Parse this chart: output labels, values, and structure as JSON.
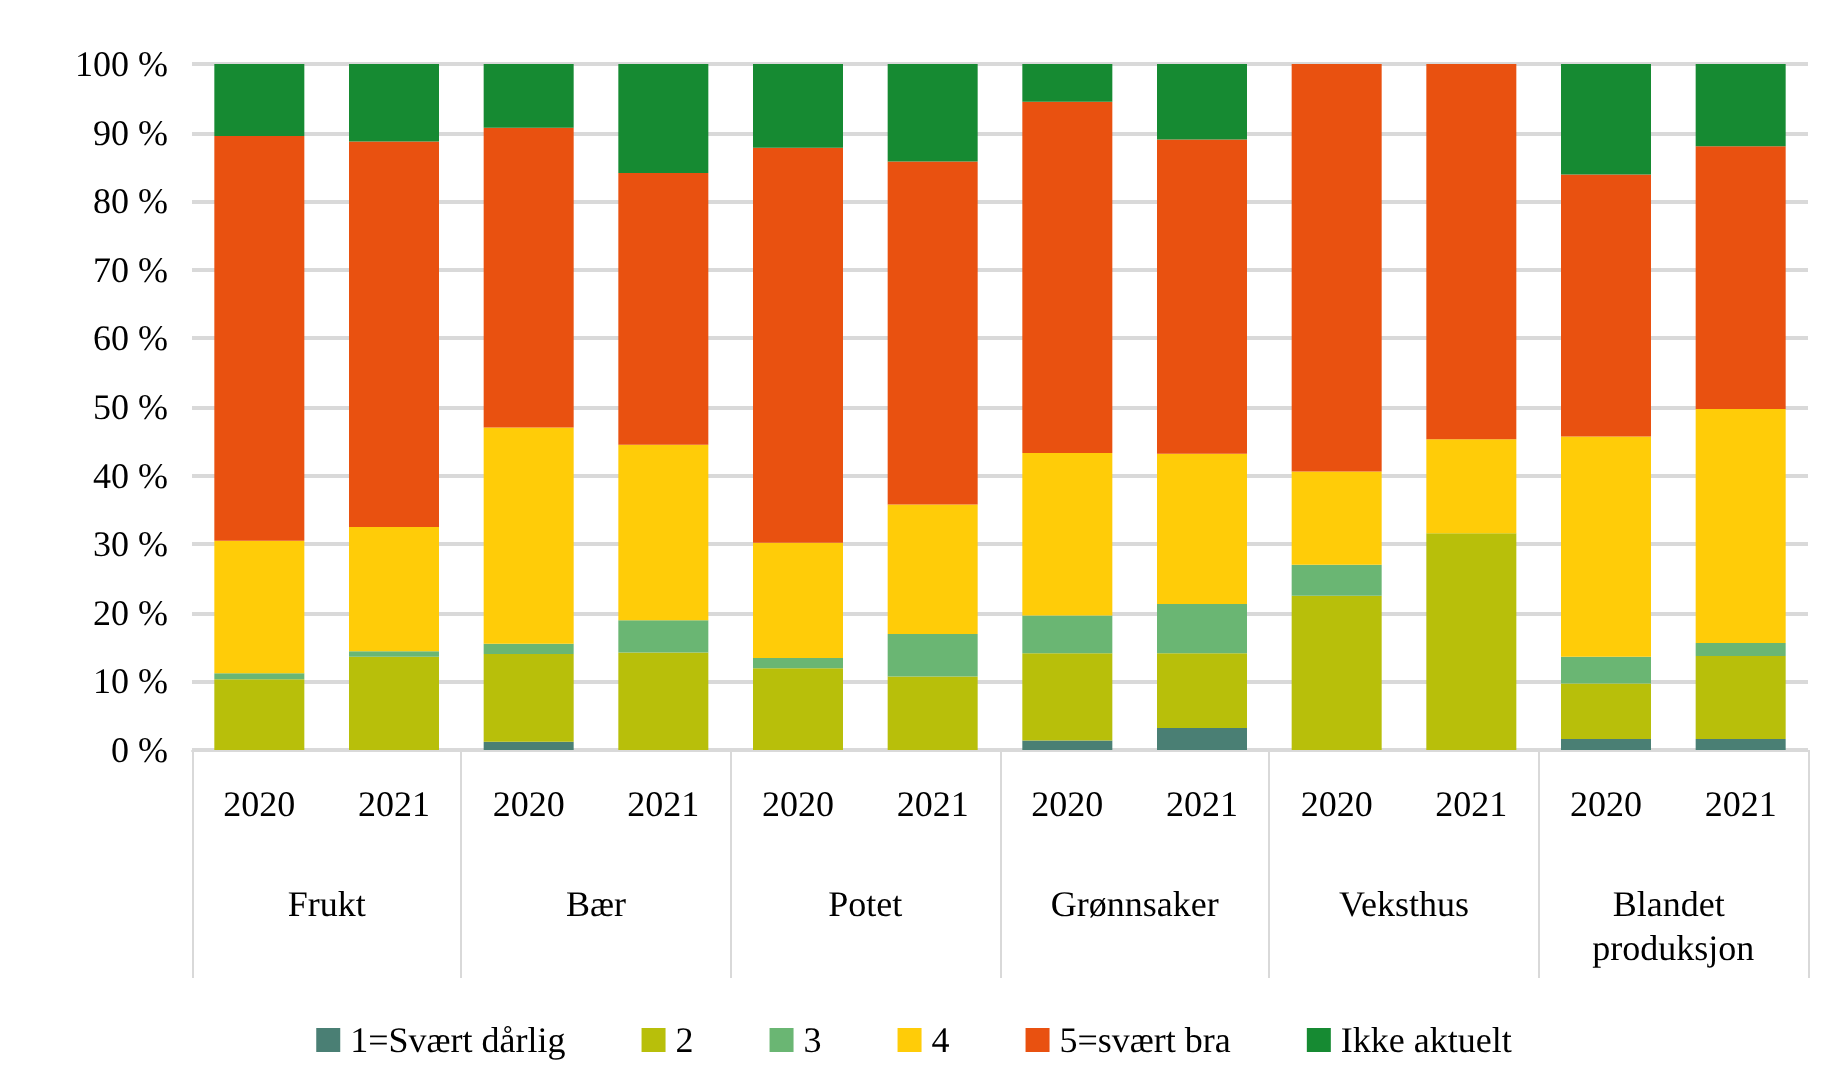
{
  "chart_data": {
    "type": "bar",
    "stacked": true,
    "grid": "y",
    "legend": "bottom",
    "categories": [
      "2020",
      "2021",
      "2020",
      "2021",
      "2020",
      "2021",
      "2020",
      "2021",
      "2020",
      "2021",
      "2020",
      "2021"
    ],
    "annotations": [
      "Frukt",
      "Bær",
      "Potet",
      "Grønnsaker",
      "Veksthus",
      "Blandet produksjon"
    ],
    "ylim": [
      0,
      100
    ],
    "yticks": [
      {
        "value": 0,
        "label": "0 %"
      },
      {
        "value": 10,
        "label": "10 %"
      },
      {
        "value": 20,
        "label": "20 %"
      },
      {
        "value": 30,
        "label": "30 %"
      },
      {
        "value": 40,
        "label": "40 %"
      },
      {
        "value": 50,
        "label": "50 %"
      },
      {
        "value": 60,
        "label": "60 %"
      },
      {
        "value": 70,
        "label": "70 %"
      },
      {
        "value": 80,
        "label": "80 %"
      },
      {
        "value": 90,
        "label": "90 %"
      },
      {
        "value": 100,
        "label": "100 %"
      }
    ],
    "series": [
      {
        "name": "1=Svært dårlig",
        "color": "#4a7f74",
        "values": [
          0,
          0,
          1.2,
          0,
          0,
          0,
          1.4,
          3.2,
          0,
          0,
          1.6,
          1.6
        ]
      },
      {
        "name": "2",
        "color": "#b8bf0a",
        "values": [
          10.3,
          13.6,
          12.8,
          14.2,
          11.9,
          10.7,
          12.7,
          10.9,
          22.5,
          31.6,
          8.1,
          12.1
        ]
      },
      {
        "name": "3",
        "color": "#6ab673",
        "values": [
          0.9,
          0.8,
          1.5,
          4.7,
          1.5,
          6.2,
          5.5,
          7.2,
          4.5,
          0,
          3.9,
          1.9
        ]
      },
      {
        "name": "4",
        "color": "#ffcc08",
        "values": [
          19.3,
          18.1,
          31.5,
          25.6,
          16.8,
          18.9,
          23.7,
          21.9,
          13.6,
          13.7,
          32.1,
          34.1
        ]
      },
      {
        "name": "5=svært bra",
        "color": "#e95110",
        "values": [
          59,
          56.2,
          43.7,
          39.6,
          57.6,
          50,
          51.2,
          45.8,
          59.4,
          54.7,
          38.2,
          38.3
        ]
      },
      {
        "name": "Ikke aktuelt",
        "color": "#168a32",
        "values": [
          10.5,
          11.3,
          9.3,
          15.9,
          12.2,
          14.2,
          5.5,
          11,
          0,
          0,
          16.1,
          12
        ]
      }
    ]
  }
}
